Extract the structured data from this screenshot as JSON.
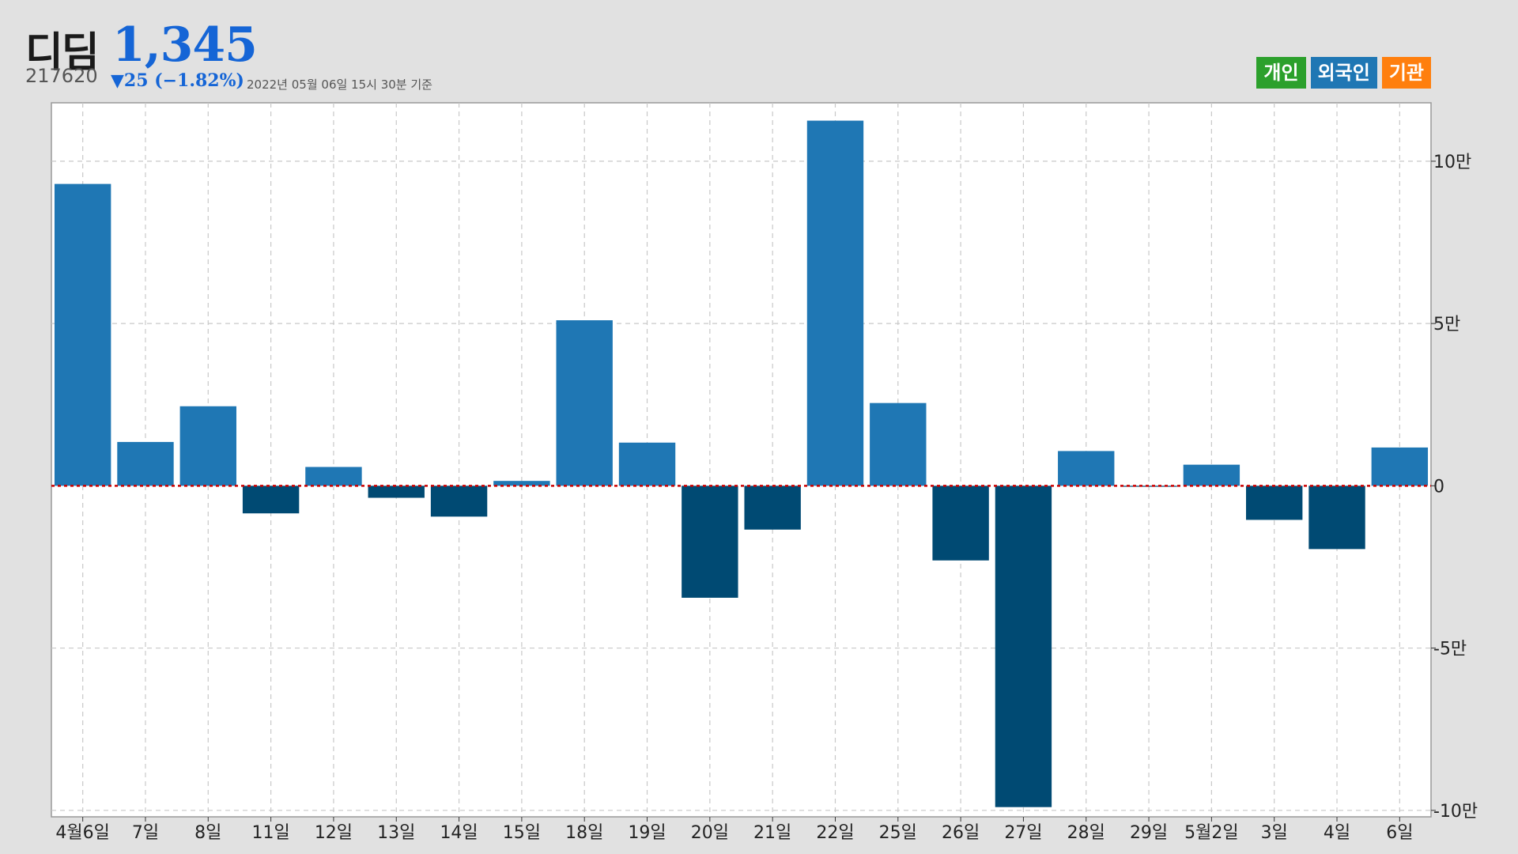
{
  "header": {
    "name": "디딤",
    "price": "1,345",
    "code": "217620",
    "change": "▼25 (−1.82%)",
    "as_of": "2022년 05월 06일 15시 30분 기준"
  },
  "legend": [
    {
      "label": "개인",
      "color": "#2ca02c"
    },
    {
      "label": "외국인",
      "color": "#1f77b4"
    },
    {
      "label": "기관",
      "color": "#ff7f0e"
    }
  ],
  "colors": {
    "positive": "#1f77b4",
    "negative": "#004a73",
    "zero_line": "#cc0000",
    "grid": "#c8c8c8"
  },
  "chart_data": {
    "type": "bar",
    "categories": [
      "4월6일",
      "7일",
      "8일",
      "11일",
      "12일",
      "13일",
      "14일",
      "15일",
      "18일",
      "19일",
      "20일",
      "21일",
      "22일",
      "25일",
      "26일",
      "27일",
      "28일",
      "29일",
      "5월2일",
      "3일",
      "4일",
      "6일"
    ],
    "values": [
      93000,
      13500,
      24500,
      -8500,
      5800,
      -3700,
      -9500,
      1500,
      51000,
      13300,
      -34500,
      -13500,
      112500,
      25500,
      -23000,
      -99000,
      10700,
      -300,
      6500,
      -10500,
      -19500,
      11800
    ],
    "yticks": [
      {
        "value": 100000,
        "label": "10만"
      },
      {
        "value": 50000,
        "label": "5만"
      },
      {
        "value": 0,
        "label": "0"
      },
      {
        "value": -50000,
        "label": "-5만"
      },
      {
        "value": -100000,
        "label": "-10만"
      }
    ],
    "ylim": [
      -102000,
      118000
    ],
    "grid": true,
    "legend_position": "top-right"
  }
}
